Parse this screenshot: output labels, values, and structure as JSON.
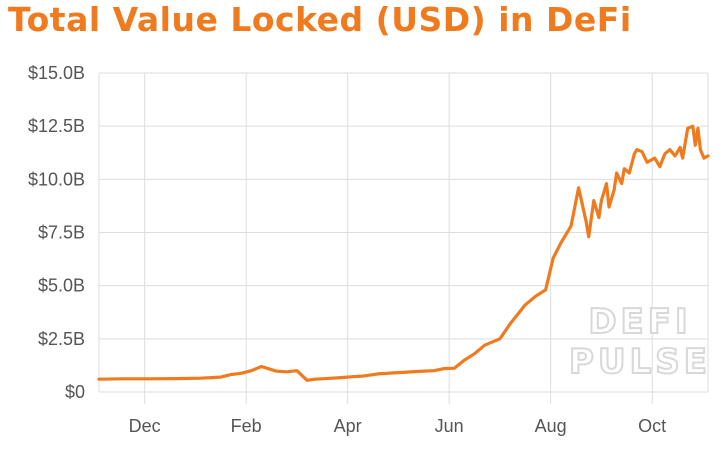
{
  "chart_data": {
    "type": "line",
    "title": "Total Value Locked (USD) in DeFi",
    "xlabel": "",
    "ylabel": "",
    "ylim": [
      0,
      15
    ],
    "xlim": [
      0,
      12
    ],
    "grid": true,
    "y_ticks": [
      {
        "value": 0,
        "label": "$0"
      },
      {
        "value": 2.5,
        "label": "$2.5B"
      },
      {
        "value": 5,
        "label": "$5.0B"
      },
      {
        "value": 7.5,
        "label": "$7.5B"
      },
      {
        "value": 10,
        "label": "$10.0B"
      },
      {
        "value": 12.5,
        "label": "$12.5B"
      },
      {
        "value": 15,
        "label": "$15.0B"
      }
    ],
    "x_ticks": [
      {
        "value": 0.9,
        "label": "Dec"
      },
      {
        "value": 2.9,
        "label": "Feb"
      },
      {
        "value": 4.9,
        "label": "Apr"
      },
      {
        "value": 6.9,
        "label": "Jun"
      },
      {
        "value": 8.9,
        "label": "Aug"
      },
      {
        "value": 10.9,
        "label": "Oct"
      }
    ],
    "series": [
      {
        "color": "#f07a1e",
        "x": [
          0,
          0.5,
          1.0,
          1.5,
          2.0,
          2.4,
          2.6,
          2.8,
          3.0,
          3.2,
          3.4,
          3.5,
          3.7,
          3.9,
          4.1,
          4.25,
          4.4,
          4.6,
          4.8,
          5.0,
          5.2,
          5.5,
          5.8,
          6.0,
          6.3,
          6.6,
          6.8,
          7.0,
          7.2,
          7.4,
          7.6,
          7.9,
          8.1,
          8.4,
          8.6,
          8.8,
          8.95,
          9.1,
          9.3,
          9.45,
          9.6,
          9.65,
          9.75,
          9.85,
          9.9,
          10.0,
          10.05,
          10.15,
          10.2,
          10.3,
          10.35,
          10.45,
          10.55,
          10.6,
          10.7,
          10.8,
          10.95,
          11.05,
          11.15,
          11.25,
          11.35,
          11.45,
          11.5,
          11.6,
          11.7,
          11.75,
          11.8,
          11.85,
          11.92,
          12.0
        ],
        "values": [
          0.6,
          0.62,
          0.62,
          0.63,
          0.65,
          0.7,
          0.82,
          0.88,
          1.0,
          1.2,
          1.05,
          0.98,
          0.95,
          1.0,
          0.55,
          0.6,
          0.62,
          0.65,
          0.68,
          0.72,
          0.75,
          0.85,
          0.9,
          0.92,
          0.97,
          1.0,
          1.1,
          1.12,
          1.5,
          1.8,
          2.2,
          2.5,
          3.2,
          4.1,
          4.5,
          4.8,
          6.3,
          7.0,
          7.8,
          9.6,
          8.0,
          7.3,
          9.0,
          8.2,
          9.0,
          9.8,
          8.7,
          9.5,
          10.3,
          9.8,
          10.5,
          10.3,
          11.2,
          11.4,
          11.3,
          10.8,
          11.0,
          10.6,
          11.2,
          11.4,
          11.1,
          11.5,
          11.0,
          12.4,
          12.5,
          11.6,
          12.4,
          11.4,
          11.0,
          11.1
        ]
      }
    ],
    "watermark": [
      "DEFI",
      "PULSE"
    ]
  }
}
